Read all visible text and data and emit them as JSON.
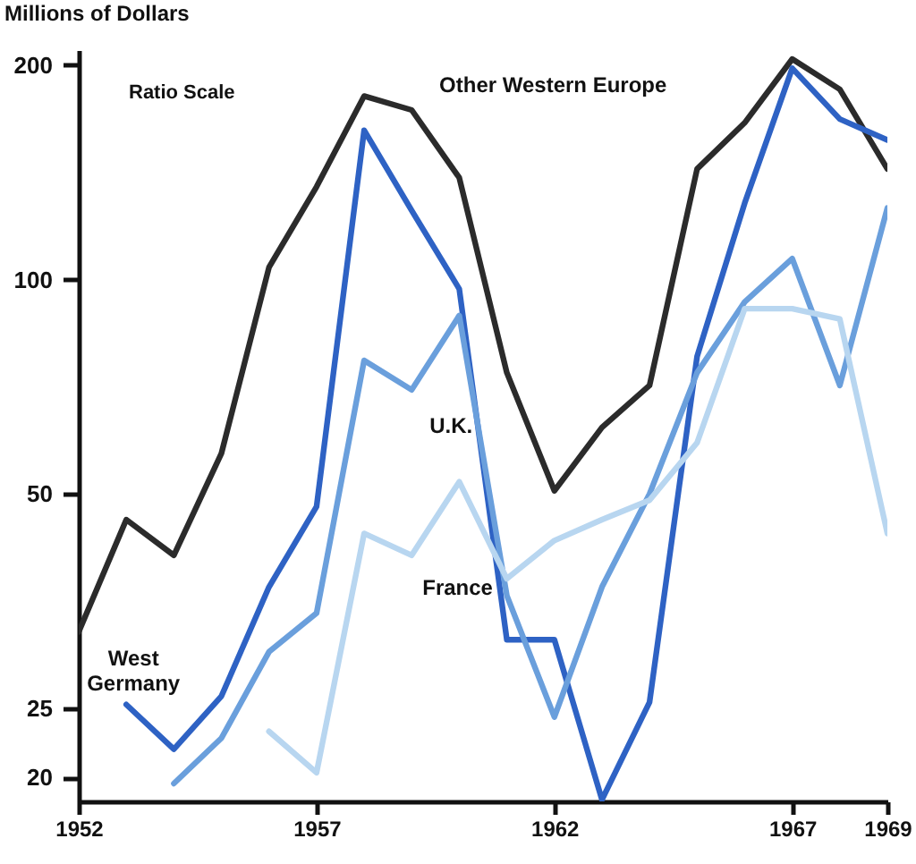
{
  "chart_data": {
    "type": "line",
    "ylabel": "Millions of Dollars",
    "annotations": [
      "Ratio Scale"
    ],
    "x": [
      1952,
      1953,
      1954,
      1955,
      1956,
      1957,
      1958,
      1959,
      1960,
      1961,
      1962,
      1963,
      1964,
      1965,
      1966,
      1967,
      1968,
      1969
    ],
    "series": [
      {
        "name": "Other Western Europe",
        "color": "#2b2b2b",
        "values": [
          32,
          46,
          41,
          57,
          104,
          135,
          181,
          173,
          139,
          74,
          50.5,
          62,
          71,
          143,
          166,
          204,
          185,
          143
        ]
      },
      {
        "name": "West Germany",
        "color": "#2e62c4",
        "values": [
          null,
          25.3,
          21.9,
          26,
          37,
          48,
          162,
          125,
          97,
          31.2,
          31.2,
          18.6,
          25.5,
          78,
          128,
          198,
          168,
          157
        ]
      },
      {
        "name": "U.K.",
        "color": "#6a9fdc",
        "values": [
          null,
          null,
          19.6,
          22.7,
          30,
          34,
          77,
          70,
          89,
          36,
          24.3,
          37,
          50,
          74,
          93,
          107,
          71,
          126
        ]
      },
      {
        "name": "France",
        "color": "#b8d6f0",
        "values": [
          null,
          null,
          null,
          null,
          23.2,
          20.3,
          44,
          41,
          52,
          38,
          43,
          46,
          49,
          59,
          91,
          91,
          88,
          44
        ]
      }
    ],
    "log": true,
    "xlim": [
      1952,
      1969
    ],
    "xticks": [
      1952,
      1957,
      1962,
      1967,
      1969
    ],
    "ylim": [
      18.5,
      210
    ],
    "yticks": [
      20,
      25,
      50,
      100,
      200
    ],
    "grid": false,
    "legend": false,
    "marker": "none",
    "line_style": "solid"
  }
}
